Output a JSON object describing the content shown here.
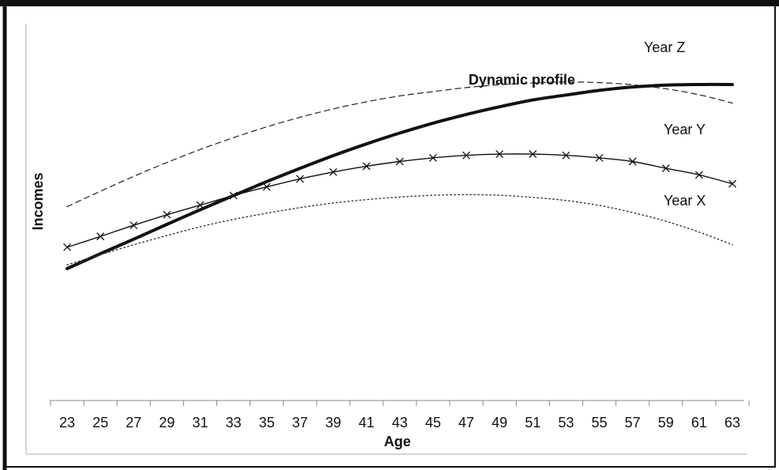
{
  "chart_data": {
    "type": "line",
    "title": "",
    "xlabel": "Age",
    "ylabel": "Incomes",
    "x": [
      23,
      25,
      27,
      29,
      31,
      33,
      35,
      37,
      39,
      41,
      43,
      45,
      47,
      49,
      51,
      53,
      55,
      57,
      59,
      61,
      63
    ],
    "xlim": [
      22,
      65
    ],
    "ylim": [
      0,
      100
    ],
    "y_ticks_shown": false,
    "grid": false,
    "legend": "none (series labeled directly on chart)",
    "series": [
      {
        "name": "Year Z",
        "style": "dashed",
        "color": "#222222",
        "values": [
          60.0,
          65.0,
          69.8,
          74.3,
          78.5,
          82.3,
          85.8,
          88.9,
          91.6,
          93.9,
          95.8,
          97.2,
          98.5,
          99.4,
          100.0,
          100.3,
          100.1,
          99.4,
          98.1,
          96.2,
          93.5
        ]
      },
      {
        "name": "Dynamic profile",
        "style": "solid-bold",
        "color": "#111111",
        "values": [
          40.0,
          44.8,
          49.5,
          54.3,
          59.0,
          63.6,
          68.1,
          72.4,
          76.5,
          80.3,
          83.8,
          87.0,
          89.8,
          92.3,
          94.5,
          96.1,
          97.6,
          98.7,
          99.3,
          99.5,
          99.5
        ]
      },
      {
        "name": "Year Y",
        "style": "solid-with-x-markers",
        "color": "#111111",
        "values": [
          46.9,
          50.4,
          54.0,
          57.4,
          60.5,
          63.6,
          66.4,
          69.0,
          71.2,
          73.1,
          74.6,
          75.8,
          76.6,
          77.0,
          77.0,
          76.6,
          75.8,
          74.6,
          72.4,
          70.3,
          67.4
        ]
      },
      {
        "name": "Year X",
        "style": "dotted",
        "color": "#333333",
        "values": [
          41.2,
          44.5,
          47.7,
          50.7,
          53.5,
          55.9,
          57.9,
          59.7,
          61.2,
          62.3,
          63.1,
          63.7,
          63.9,
          63.7,
          63.0,
          62.0,
          60.4,
          58.1,
          55.3,
          51.8,
          47.7
        ]
      }
    ]
  }
}
